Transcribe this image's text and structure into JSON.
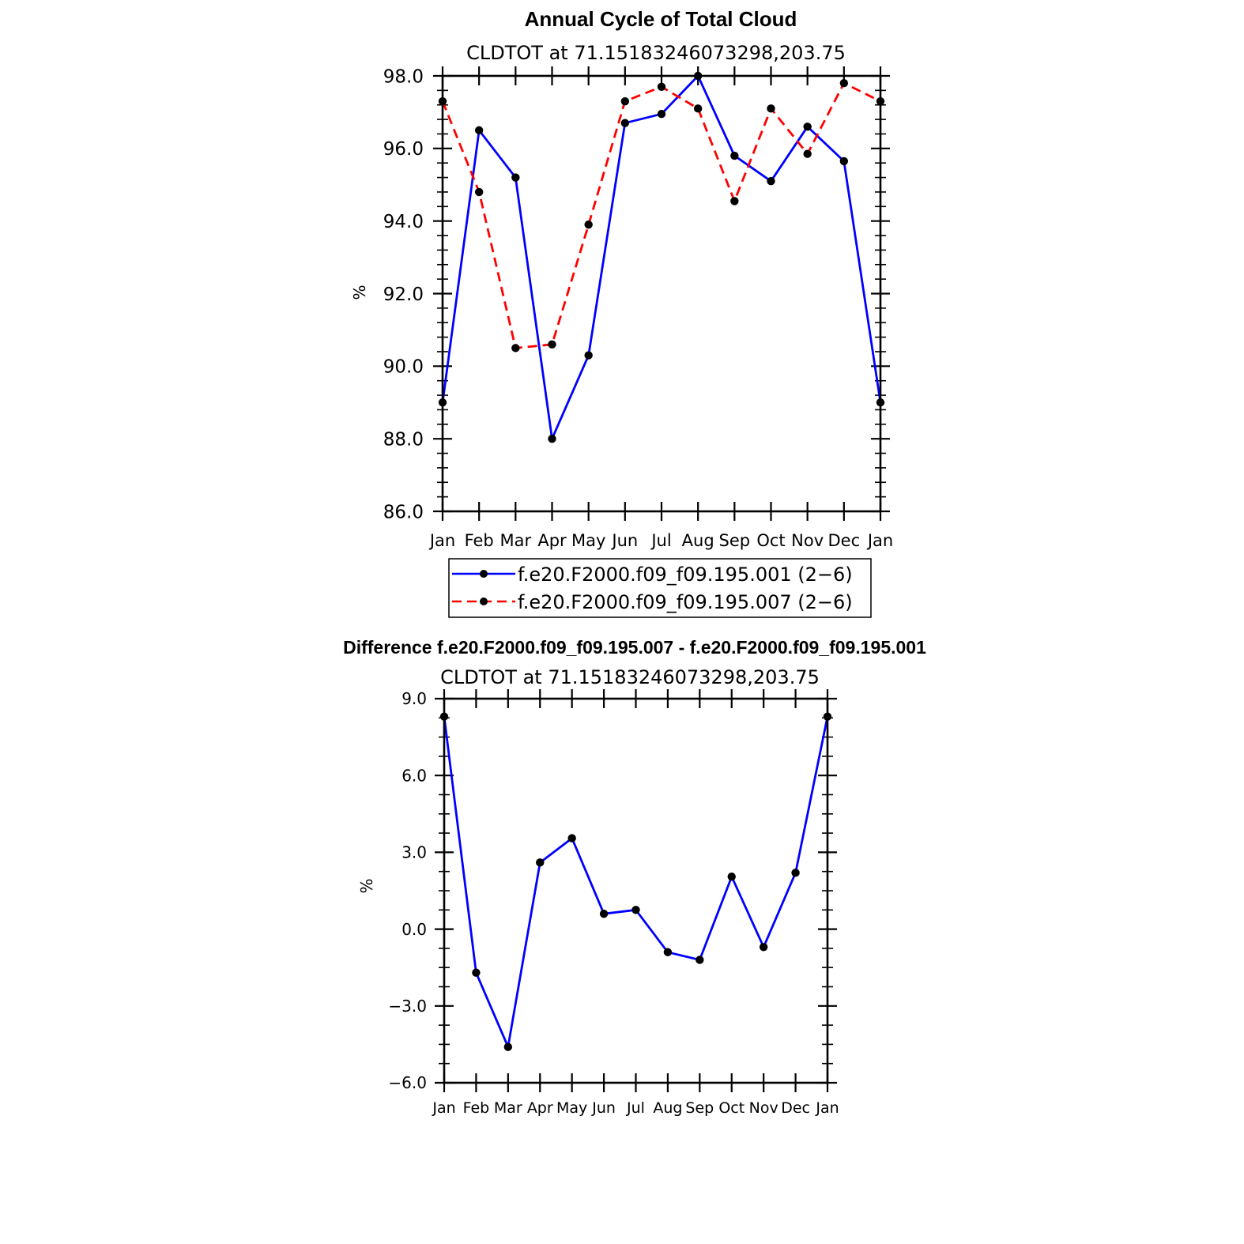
{
  "chart_data": [
    {
      "type": "line",
      "title": "Annual Cycle of Total Cloud",
      "subtitle": "CLDTOT at 71.15183246073298,203.75",
      "ylabel": "%",
      "xlabel": "",
      "categories": [
        "Jan",
        "Feb",
        "Mar",
        "Apr",
        "May",
        "Jun",
        "Jul",
        "Aug",
        "Sep",
        "Oct",
        "Nov",
        "Dec",
        "Jan"
      ],
      "ylim": [
        86,
        98
      ],
      "yticks": [
        86,
        88,
        90,
        92,
        94,
        96,
        98
      ],
      "ytick_labels": [
        "86.0",
        "88.0",
        "90.0",
        "92.0",
        "94.0",
        "96.0",
        "98.0"
      ],
      "series": [
        {
          "name": "f.e20.F2000.f09_f09.195.001 (2−6)",
          "color": "#0000ff",
          "style": "solid",
          "values": [
            89.0,
            96.5,
            95.2,
            88.0,
            90.3,
            96.7,
            96.95,
            98.0,
            95.8,
            95.1,
            96.6,
            95.65,
            89.0
          ]
        },
        {
          "name": "f.e20.F2000.f09_f09.195.007 (2−6)",
          "color": "#ff0000",
          "style": "dashed",
          "values": [
            97.3,
            94.8,
            90.5,
            90.6,
            93.9,
            97.3,
            97.7,
            97.1,
            94.55,
            97.1,
            95.85,
            97.8,
            97.3
          ]
        }
      ],
      "legend": "bottom"
    },
    {
      "type": "line",
      "title": "Difference f.e20.F2000.f09_f09.195.007 - f.e20.F2000.f09_f09.195.001",
      "subtitle": "CLDTOT at 71.15183246073298,203.75",
      "ylabel": "%",
      "xlabel": "",
      "categories": [
        "Jan",
        "Feb",
        "Mar",
        "Apr",
        "May",
        "Jun",
        "Jul",
        "Aug",
        "Sep",
        "Oct",
        "Nov",
        "Dec",
        "Jan"
      ],
      "ylim": [
        -6,
        9
      ],
      "yticks": [
        -6,
        -3,
        0,
        3,
        6,
        9
      ],
      "ytick_labels": [
        "−6.0",
        "−3.0",
        "0.0",
        "3.0",
        "6.0",
        "9.0"
      ],
      "series": [
        {
          "name": "Difference",
          "color": "#0000ff",
          "style": "solid",
          "values": [
            8.3,
            -1.7,
            -4.6,
            2.6,
            3.55,
            0.6,
            0.75,
            -0.9,
            -1.2,
            2.05,
            -0.7,
            2.2,
            8.3
          ]
        }
      ]
    }
  ]
}
